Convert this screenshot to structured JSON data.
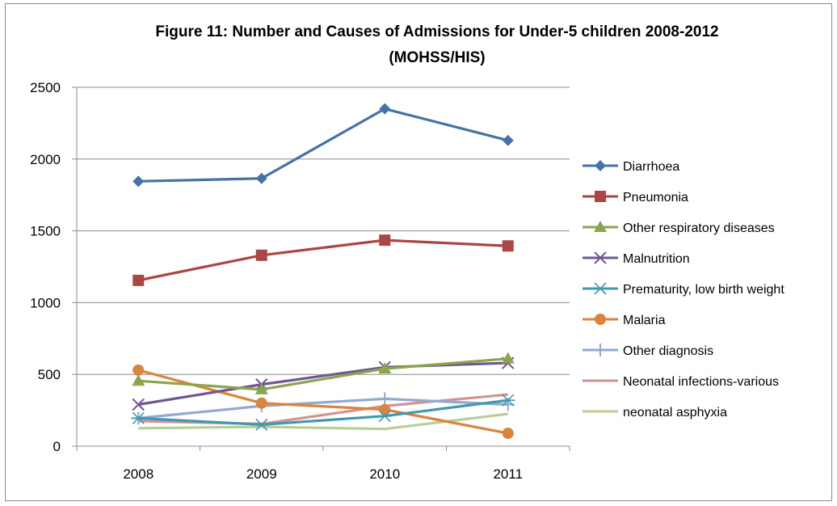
{
  "chart_data": {
    "type": "line",
    "title": "Figure 11: Number and Causes of Admissions for  Under-5 children 2008-2012",
    "subtitle": "(MOHSS/HIS)",
    "categories": [
      "2008",
      "2009",
      "2010",
      "2011"
    ],
    "ylim": [
      0,
      2500
    ],
    "yticks": [
      0,
      500,
      1000,
      1500,
      2000,
      2500
    ],
    "grid": true,
    "legend_position": "right",
    "series": [
      {
        "name": "Diarrhoea",
        "color": "#4572A7",
        "marker": "diamond",
        "values": [
          1845,
          1865,
          2350,
          2130
        ]
      },
      {
        "name": "Pneumonia",
        "color": "#AA4643",
        "marker": "square",
        "values": [
          1155,
          1330,
          1435,
          1395
        ]
      },
      {
        "name": "Other respiratory  diseases",
        "color": "#89A54E",
        "marker": "triangle",
        "values": [
          455,
          395,
          540,
          610
        ]
      },
      {
        "name": "Malnutrition",
        "color": "#71588F",
        "marker": "x",
        "values": [
          290,
          430,
          550,
          580
        ]
      },
      {
        "name": "Prematurity, low birth weight",
        "color": "#4198AF",
        "marker": "star",
        "values": [
          195,
          150,
          210,
          320
        ]
      },
      {
        "name": "Malaria",
        "color": "#DB843D",
        "marker": "circle",
        "values": [
          530,
          300,
          255,
          90
        ]
      },
      {
        "name": "Other diagnosis",
        "color": "#93A9CF",
        "marker": "plus",
        "values": [
          195,
          280,
          330,
          290
        ]
      },
      {
        "name": "Neonatal infections-various",
        "color": "#D19392",
        "marker": "none",
        "values": [
          175,
          155,
          280,
          360
        ]
      },
      {
        "name": "neonatal asphyxia",
        "color": "#B9CD96",
        "marker": "none",
        "values": [
          125,
          135,
          120,
          225
        ]
      }
    ]
  }
}
